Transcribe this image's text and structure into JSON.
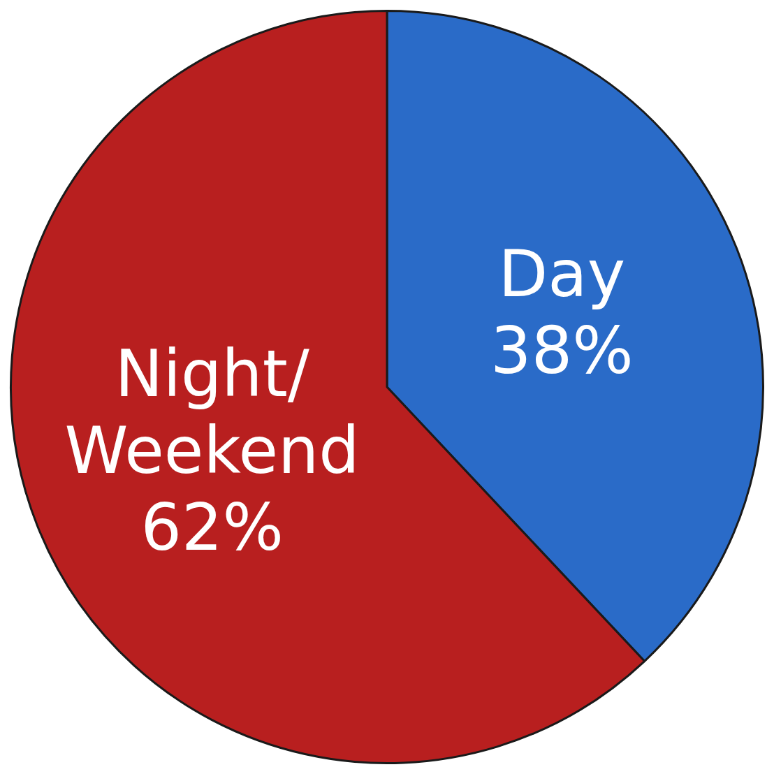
{
  "chart_data": {
    "type": "pie",
    "categories": [
      "Day",
      "Night/Weekend"
    ],
    "values": [
      38,
      62
    ],
    "colors": [
      "#2a6bc8",
      "#b81f1f"
    ],
    "value_labels": [
      "38%",
      "62%"
    ],
    "legend": false
  }
}
